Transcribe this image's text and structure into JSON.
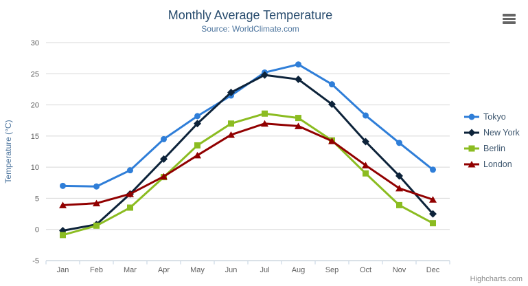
{
  "credits": "Highcharts.com",
  "icons": {
    "export_menu": "hamburger-icon"
  },
  "theme": {
    "title_color": "#274b6d",
    "subtitle_color": "#4d759e",
    "axis_label_color": "#606060",
    "axis_title_color": "#4d759e",
    "grid_color": "#d8d8d8",
    "axis_line_color": "#c0d0e0",
    "legend_text_color": "#3e576f",
    "credits_color": "#8a8a8a",
    "background": "#ffffff"
  },
  "chart_data": {
    "type": "line",
    "title": "Monthly Average Temperature",
    "subtitle": "Source: WorldClimate.com",
    "xlabel": "",
    "ylabel": "Temperature (°C)",
    "ylim": [
      -5,
      30
    ],
    "ytick_step": 5,
    "yticks": [
      -5,
      0,
      5,
      10,
      15,
      20,
      25,
      30
    ],
    "grid": true,
    "legend_position": "right",
    "categories": [
      "Jan",
      "Feb",
      "Mar",
      "Apr",
      "May",
      "Jun",
      "Jul",
      "Aug",
      "Sep",
      "Oct",
      "Nov",
      "Dec"
    ],
    "series": [
      {
        "name": "Tokyo",
        "color": "#2f7ed8",
        "marker": "circle",
        "values": [
          7.0,
          6.9,
          9.5,
          14.5,
          18.2,
          21.5,
          25.2,
          26.5,
          23.3,
          18.3,
          13.9,
          9.6
        ]
      },
      {
        "name": "New York",
        "color": "#0d233a",
        "marker": "diamond",
        "values": [
          -0.2,
          0.8,
          5.7,
          11.3,
          17.0,
          22.0,
          24.8,
          24.1,
          20.1,
          14.1,
          8.6,
          2.5
        ]
      },
      {
        "name": "Berlin",
        "color": "#8bbc21",
        "marker": "square",
        "values": [
          -0.9,
          0.6,
          3.5,
          8.4,
          13.5,
          17.0,
          18.6,
          17.9,
          14.3,
          9.0,
          3.9,
          1.0
        ]
      },
      {
        "name": "London",
        "color": "#910000",
        "marker": "triangle",
        "values": [
          3.9,
          4.2,
          5.7,
          8.5,
          11.9,
          15.2,
          17.0,
          16.6,
          14.2,
          10.3,
          6.6,
          4.8
        ]
      }
    ]
  }
}
